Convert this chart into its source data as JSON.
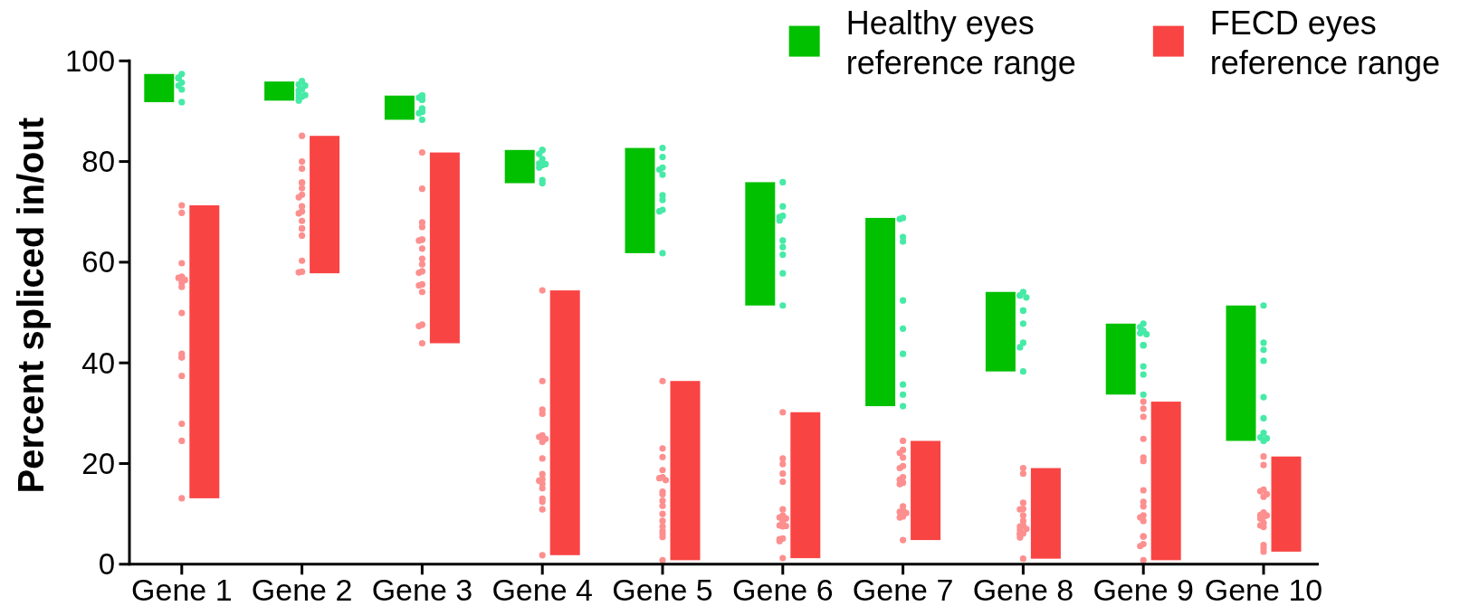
{
  "chart_data": {
    "type": "bar",
    "ylabel": "Percent spliced in/out",
    "categories": [
      "Gene 1",
      "Gene 2",
      "Gene 3",
      "Gene 4",
      "Gene 5",
      "Gene 6",
      "Gene 7",
      "Gene 8",
      "Gene 9",
      "Gene 10"
    ],
    "ylim": [
      0,
      100
    ],
    "yticks": [
      0,
      20,
      40,
      60,
      80,
      100
    ],
    "legend": "top right",
    "marker": "circle",
    "series": [
      {
        "name": "Healthy eyes reference range",
        "color": "#00c000",
        "base": [
          91.8,
          92.1,
          88.3,
          75.7,
          61.8,
          51.4,
          31.4,
          38.3,
          33.7,
          24.5
        ],
        "values": [
          5.6,
          3.8,
          4.8,
          6.6,
          20.9,
          24.5,
          37.4,
          15.8,
          14.1,
          26.9
        ]
      },
      {
        "name": "FECD eyes reference range",
        "color": "#f94444",
        "base": [
          13.1,
          57.8,
          43.9,
          1.8,
          0.8,
          1.2,
          4.8,
          1.1,
          0.8,
          2.5
        ],
        "values": [
          58.2,
          27.3,
          37.9,
          52.6,
          35.6,
          29.0,
          19.7,
          18.0,
          31.5,
          18.9
        ]
      },
      {
        "type": "scatter",
        "color": "#46eaa6",
        "x": [
          "Gene 1",
          "Gene 1",
          "Gene 1",
          "Gene 1",
          "Gene 1",
          "Gene 1",
          "Gene 1",
          "Gene 1",
          "Gene 1",
          "Gene 2",
          "Gene 2",
          "Gene 2",
          "Gene 2",
          "Gene 2",
          "Gene 2",
          "Gene 2",
          "Gene 2",
          "Gene 2",
          "Gene 2",
          "Gene 3",
          "Gene 3",
          "Gene 3",
          "Gene 3",
          "Gene 3",
          "Gene 3",
          "Gene 3",
          "Gene 3",
          "Gene 3",
          "Gene 3",
          "Gene 3",
          "Gene 4",
          "Gene 4",
          "Gene 4",
          "Gene 4",
          "Gene 4",
          "Gene 4",
          "Gene 4",
          "Gene 4",
          "Gene 4",
          "Gene 4",
          "Gene 5",
          "Gene 5",
          "Gene 5",
          "Gene 5",
          "Gene 5",
          "Gene 5",
          "Gene 5",
          "Gene 5",
          "Gene 5",
          "Gene 5",
          "Gene 6",
          "Gene 6",
          "Gene 6",
          "Gene 6",
          "Gene 6",
          "Gene 6",
          "Gene 6",
          "Gene 6",
          "Gene 6",
          "Gene 6",
          "Gene 7",
          "Gene 7",
          "Gene 7",
          "Gene 7",
          "Gene 7",
          "Gene 7",
          "Gene 7",
          "Gene 7",
          "Gene 7",
          "Gene 7",
          "Gene 8",
          "Gene 8",
          "Gene 8",
          "Gene 8",
          "Gene 8",
          "Gene 8",
          "Gene 8",
          "Gene 8",
          "Gene 8",
          "Gene 8",
          "Gene 9",
          "Gene 9",
          "Gene 9",
          "Gene 9",
          "Gene 9",
          "Gene 9",
          "Gene 9",
          "Gene 9",
          "Gene 9",
          "Gene 9",
          "Gene 10",
          "Gene 10",
          "Gene 10",
          "Gene 10",
          "Gene 10",
          "Gene 10",
          "Gene 10",
          "Gene 10",
          "Gene 10",
          "Gene 10"
        ],
        "values": [
          97.4,
          96.6,
          96.6,
          96.6,
          96.6,
          95.7,
          95.1,
          94.3,
          91.8,
          96.0,
          95.3,
          95.1,
          94.3,
          94.1,
          93.4,
          93.2,
          92.9,
          92.7,
          92.1,
          93.1,
          93.1,
          92.7,
          92.3,
          92.3,
          90.5,
          90.5,
          89.9,
          89.9,
          89.6,
          88.3,
          82.3,
          82.3,
          81.5,
          80.5,
          79.6,
          79.5,
          79.3,
          78.8,
          76.3,
          75.7,
          82.7,
          80.9,
          78.8,
          78.4,
          77.4,
          73.3,
          72.4,
          70.4,
          70.1,
          61.8,
          75.9,
          71.1,
          69.2,
          69.0,
          68.3,
          64.3,
          63.0,
          61.5,
          57.8,
          51.4,
          68.8,
          68.6,
          65.0,
          64.1,
          52.4,
          46.8,
          41.8,
          35.7,
          33.7,
          31.4,
          54.1,
          53.4,
          53.4,
          53.0,
          50.4,
          50.4,
          47.8,
          44.0,
          43.1,
          38.3,
          47.8,
          47.1,
          46.4,
          45.9,
          45.7,
          43.5,
          43.5,
          39.3,
          37.7,
          33.7,
          51.4,
          44.0,
          42.6,
          40.4,
          33.2,
          29.0,
          26.1,
          25.2,
          25.0,
          24.5
        ]
      },
      {
        "type": "scatter",
        "color": "#fd8f8f",
        "x": [
          "Gene 1",
          "Gene 1",
          "Gene 1",
          "Gene 1",
          "Gene 1",
          "Gene 1",
          "Gene 1",
          "Gene 1",
          "Gene 1",
          "Gene 1",
          "Gene 1",
          "Gene 1",
          "Gene 1",
          "Gene 1",
          "Gene 1",
          "Gene 1",
          "Gene 1",
          "Gene 2",
          "Gene 2",
          "Gene 2",
          "Gene 2",
          "Gene 2",
          "Gene 2",
          "Gene 2",
          "Gene 2",
          "Gene 2",
          "Gene 2",
          "Gene 2",
          "Gene 2",
          "Gene 2",
          "Gene 2",
          "Gene 2",
          "Gene 2",
          "Gene 2",
          "Gene 2",
          "Gene 3",
          "Gene 3",
          "Gene 3",
          "Gene 3",
          "Gene 3",
          "Gene 3",
          "Gene 3",
          "Gene 3",
          "Gene 3",
          "Gene 3",
          "Gene 3",
          "Gene 3",
          "Gene 3",
          "Gene 3",
          "Gene 3",
          "Gene 3",
          "Gene 3",
          "Gene 3",
          "Gene 4",
          "Gene 4",
          "Gene 4",
          "Gene 4",
          "Gene 4",
          "Gene 4",
          "Gene 4",
          "Gene 4",
          "Gene 4",
          "Gene 4",
          "Gene 4",
          "Gene 4",
          "Gene 4",
          "Gene 4",
          "Gene 4",
          "Gene 4",
          "Gene 4",
          "Gene 4",
          "Gene 5",
          "Gene 5",
          "Gene 5",
          "Gene 5",
          "Gene 5",
          "Gene 5",
          "Gene 5",
          "Gene 5",
          "Gene 5",
          "Gene 5",
          "Gene 5",
          "Gene 5",
          "Gene 5",
          "Gene 5",
          "Gene 5",
          "Gene 5",
          "Gene 5",
          "Gene 5",
          "Gene 6",
          "Gene 6",
          "Gene 6",
          "Gene 6",
          "Gene 6",
          "Gene 6",
          "Gene 6",
          "Gene 6",
          "Gene 6",
          "Gene 6",
          "Gene 6",
          "Gene 6",
          "Gene 6",
          "Gene 6",
          "Gene 6",
          "Gene 6",
          "Gene 6",
          "Gene 6",
          "Gene 7",
          "Gene 7",
          "Gene 7",
          "Gene 7",
          "Gene 7",
          "Gene 7",
          "Gene 7",
          "Gene 7",
          "Gene 7",
          "Gene 7",
          "Gene 7",
          "Gene 7",
          "Gene 7",
          "Gene 7",
          "Gene 7",
          "Gene 7",
          "Gene 7",
          "Gene 8",
          "Gene 8",
          "Gene 8",
          "Gene 8",
          "Gene 8",
          "Gene 8",
          "Gene 8",
          "Gene 8",
          "Gene 8",
          "Gene 8",
          "Gene 8",
          "Gene 8",
          "Gene 8",
          "Gene 8",
          "Gene 8",
          "Gene 8",
          "Gene 9",
          "Gene 9",
          "Gene 9",
          "Gene 9",
          "Gene 9",
          "Gene 9",
          "Gene 9",
          "Gene 9",
          "Gene 9",
          "Gene 9",
          "Gene 9",
          "Gene 9",
          "Gene 9",
          "Gene 9",
          "Gene 9",
          "Gene 9",
          "Gene 9",
          "Gene 10",
          "Gene 10",
          "Gene 10",
          "Gene 10",
          "Gene 10",
          "Gene 10",
          "Gene 10",
          "Gene 10",
          "Gene 10",
          "Gene 10",
          "Gene 10",
          "Gene 10",
          "Gene 10",
          "Gene 10",
          "Gene 10",
          "Gene 10",
          "Gene 10"
        ],
        "values": [
          71.3,
          69.8,
          59.8,
          57.1,
          57.1,
          56.9,
          56.5,
          55.9,
          55.1,
          49.9,
          41.8,
          41.1,
          41.1,
          37.4,
          27.9,
          24.5,
          13.1,
          85.1,
          80.0,
          78.6,
          75.8,
          75.8,
          74.7,
          73.4,
          72.9,
          71.1,
          70.1,
          69.7,
          68.2,
          66.7,
          66.7,
          65.3,
          60.3,
          58.1,
          58.0,
          81.8,
          74.6,
          67.9,
          67.0,
          64.5,
          64.5,
          64.3,
          62.7,
          60.7,
          59.6,
          58.2,
          57.9,
          55.6,
          55.4,
          54.1,
          47.6,
          47.3,
          43.9,
          54.4,
          36.4,
          30.7,
          29.9,
          25.6,
          25.3,
          24.9,
          24.3,
          21.0,
          17.9,
          16.9,
          16.6,
          16.0,
          15.1,
          13.0,
          12.4,
          10.9,
          1.8,
          36.4,
          23.0,
          21.3,
          18.7,
          17.3,
          17.1,
          16.7,
          14.4,
          13.9,
          12.6,
          11.6,
          10.0,
          8.6,
          7.5,
          6.6,
          6.0,
          5.4,
          0.8,
          30.2,
          21.0,
          19.9,
          18.0,
          16.4,
          10.9,
          9.7,
          9.3,
          9.1,
          8.6,
          8.1,
          7.7,
          7.6,
          7.5,
          5.1,
          5.0,
          4.6,
          1.2,
          24.5,
          22.7,
          22.1,
          21.2,
          19.5,
          19.1,
          17.3,
          16.8,
          16.2,
          15.9,
          11.5,
          10.7,
          10.4,
          10.2,
          9.5,
          9.3,
          4.8,
          19.1,
          18.0,
          12.2,
          11.0,
          10.9,
          9.7,
          8.6,
          7.7,
          7.5,
          7.0,
          6.8,
          6.1,
          6.0,
          6.0,
          5.3,
          1.1,
          32.3,
          30.9,
          29.3,
          24.9,
          21.2,
          20.5,
          14.7,
          12.4,
          11.5,
          9.7,
          9.3,
          8.6,
          5.5,
          5.5,
          4.0,
          3.6,
          0.8,
          21.4,
          19.7,
          14.8,
          14.5,
          13.9,
          13.4,
          10.3,
          9.8,
          9.7,
          9.4,
          9.1,
          8.2,
          7.7,
          7.4,
          3.8,
          3.2,
          2.5
        ]
      }
    ]
  }
}
